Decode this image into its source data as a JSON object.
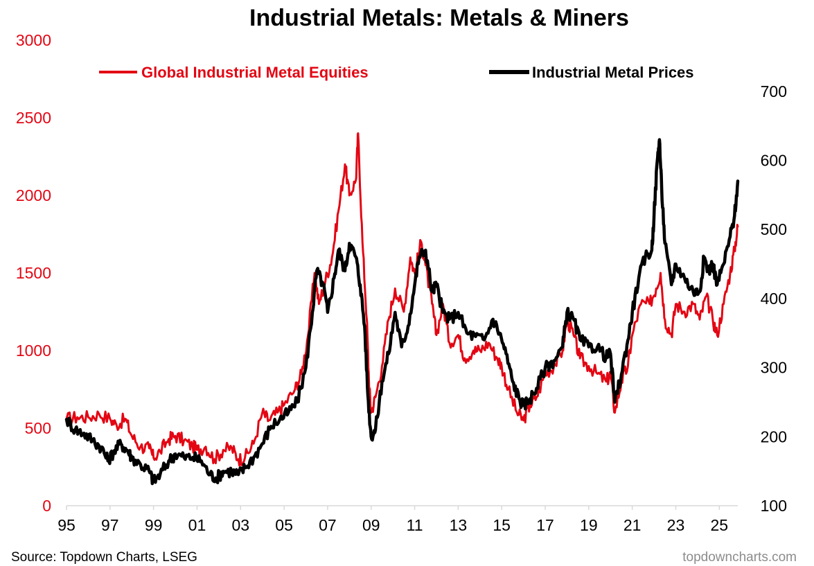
{
  "chart_data": {
    "type": "line",
    "title": "Industrial Metals: Metals & Miners",
    "x_axis": {
      "ticks": [
        "95",
        "97",
        "99",
        "01",
        "03",
        "05",
        "07",
        "09",
        "11",
        "13",
        "15",
        "17",
        "19",
        "21",
        "23",
        "25"
      ],
      "range": [
        1995.0,
        2025.85
      ]
    },
    "y_left": {
      "range": [
        0,
        3000
      ],
      "ticks": [
        0,
        500,
        1000,
        1500,
        2000,
        2500,
        3000
      ],
      "color": "#e30613"
    },
    "y_right": {
      "range": [
        100,
        750
      ],
      "ticks": [
        100,
        200,
        300,
        400,
        500,
        600,
        700
      ],
      "color": "#000000"
    },
    "grid": false,
    "legend_placement": "top",
    "series": [
      {
        "name": "Global Industrial Metal Equities",
        "axis": "left",
        "color": "#e30613",
        "points": [
          [
            1995.0,
            560
          ],
          [
            1995.5,
            570
          ],
          [
            1996.0,
            570
          ],
          [
            1996.5,
            590
          ],
          [
            1997.0,
            560
          ],
          [
            1997.3,
            520
          ],
          [
            1997.7,
            560
          ],
          [
            1998.0,
            450
          ],
          [
            1998.4,
            380
          ],
          [
            1998.8,
            370
          ],
          [
            1999.0,
            310
          ],
          [
            1999.3,
            350
          ],
          [
            1999.7,
            430
          ],
          [
            2000.0,
            450
          ],
          [
            2000.4,
            420
          ],
          [
            2000.8,
            380
          ],
          [
            2001.0,
            360
          ],
          [
            2001.4,
            380
          ],
          [
            2001.8,
            300
          ],
          [
            2002.2,
            360
          ],
          [
            2002.6,
            370
          ],
          [
            2002.9,
            300
          ],
          [
            2003.2,
            310
          ],
          [
            2003.6,
            400
          ],
          [
            2004.0,
            600
          ],
          [
            2004.3,
            550
          ],
          [
            2004.7,
            600
          ],
          [
            2005.0,
            650
          ],
          [
            2005.5,
            750
          ],
          [
            2005.8,
            850
          ],
          [
            2006.1,
            1100
          ],
          [
            2006.4,
            1500
          ],
          [
            2006.6,
            1300
          ],
          [
            2006.9,
            1450
          ],
          [
            2007.2,
            1600
          ],
          [
            2007.5,
            1900
          ],
          [
            2007.8,
            2200
          ],
          [
            2008.0,
            2000
          ],
          [
            2008.3,
            2100
          ],
          [
            2008.4,
            2400
          ],
          [
            2008.6,
            1700
          ],
          [
            2008.8,
            1200
          ],
          [
            2008.9,
            800
          ],
          [
            2009.0,
            600
          ],
          [
            2009.2,
            700
          ],
          [
            2009.5,
            900
          ],
          [
            2009.8,
            1200
          ],
          [
            2010.1,
            1400
          ],
          [
            2010.5,
            1250
          ],
          [
            2010.8,
            1600
          ],
          [
            2011.0,
            1500
          ],
          [
            2011.3,
            1700
          ],
          [
            2011.5,
            1550
          ],
          [
            2011.8,
            1300
          ],
          [
            2012.0,
            1100
          ],
          [
            2012.3,
            1300
          ],
          [
            2012.6,
            1050
          ],
          [
            2013.0,
            1100
          ],
          [
            2013.3,
            950
          ],
          [
            2013.7,
            1000
          ],
          [
            2014.0,
            1000
          ],
          [
            2014.4,
            1050
          ],
          [
            2014.8,
            950
          ],
          [
            2015.0,
            900
          ],
          [
            2015.3,
            750
          ],
          [
            2015.7,
            600
          ],
          [
            2016.0,
            550
          ],
          [
            2016.3,
            650
          ],
          [
            2016.6,
            700
          ],
          [
            2017.0,
            850
          ],
          [
            2017.4,
            900
          ],
          [
            2017.8,
            1000
          ],
          [
            2018.0,
            1200
          ],
          [
            2018.3,
            1100
          ],
          [
            2018.6,
            950
          ],
          [
            2019.0,
            900
          ],
          [
            2019.4,
            850
          ],
          [
            2019.8,
            800
          ],
          [
            2020.0,
            850
          ],
          [
            2020.2,
            600
          ],
          [
            2020.5,
            800
          ],
          [
            2020.8,
            900
          ],
          [
            2021.0,
            1100
          ],
          [
            2021.4,
            1300
          ],
          [
            2021.8,
            1300
          ],
          [
            2022.1,
            1400
          ],
          [
            2022.3,
            1500
          ],
          [
            2022.5,
            1200
          ],
          [
            2022.8,
            1100
          ],
          [
            2023.0,
            1300
          ],
          [
            2023.4,
            1250
          ],
          [
            2023.8,
            1300
          ],
          [
            2024.1,
            1200
          ],
          [
            2024.4,
            1350
          ],
          [
            2024.7,
            1200
          ],
          [
            2024.9,
            1100
          ],
          [
            2025.2,
            1300
          ],
          [
            2025.5,
            1500
          ],
          [
            2025.7,
            1650
          ],
          [
            2025.85,
            1800
          ]
        ]
      },
      {
        "name": "Industrial Metal Prices",
        "axis": "right",
        "color": "#000000",
        "points": [
          [
            1995.0,
            225
          ],
          [
            1995.4,
            210
          ],
          [
            1995.8,
            205
          ],
          [
            1996.2,
            195
          ],
          [
            1996.6,
            185
          ],
          [
            1996.9,
            165
          ],
          [
            1997.2,
            180
          ],
          [
            1997.5,
            190
          ],
          [
            1997.8,
            180
          ],
          [
            1998.0,
            170
          ],
          [
            1998.4,
            160
          ],
          [
            1998.8,
            150
          ],
          [
            1999.0,
            135
          ],
          [
            1999.3,
            145
          ],
          [
            1999.7,
            165
          ],
          [
            2000.0,
            175
          ],
          [
            2000.4,
            170
          ],
          [
            2000.8,
            170
          ],
          [
            2001.2,
            165
          ],
          [
            2001.6,
            145
          ],
          [
            2001.9,
            140
          ],
          [
            2002.2,
            150
          ],
          [
            2002.6,
            150
          ],
          [
            2002.9,
            145
          ],
          [
            2003.2,
            155
          ],
          [
            2003.6,
            170
          ],
          [
            2004.0,
            190
          ],
          [
            2004.4,
            215
          ],
          [
            2004.8,
            225
          ],
          [
            2005.2,
            235
          ],
          [
            2005.6,
            250
          ],
          [
            2006.0,
            300
          ],
          [
            2006.3,
            380
          ],
          [
            2006.5,
            440
          ],
          [
            2006.8,
            420
          ],
          [
            2007.0,
            380
          ],
          [
            2007.3,
            430
          ],
          [
            2007.5,
            470
          ],
          [
            2007.8,
            440
          ],
          [
            2008.0,
            480
          ],
          [
            2008.3,
            460
          ],
          [
            2008.5,
            420
          ],
          [
            2008.7,
            360
          ],
          [
            2008.85,
            260
          ],
          [
            2009.0,
            200
          ],
          [
            2009.2,
            210
          ],
          [
            2009.5,
            280
          ],
          [
            2009.8,
            320
          ],
          [
            2010.1,
            380
          ],
          [
            2010.4,
            330
          ],
          [
            2010.7,
            360
          ],
          [
            2011.0,
            420
          ],
          [
            2011.2,
            460
          ],
          [
            2011.5,
            470
          ],
          [
            2011.8,
            410
          ],
          [
            2012.0,
            420
          ],
          [
            2012.3,
            380
          ],
          [
            2012.6,
            370
          ],
          [
            2013.0,
            380
          ],
          [
            2013.4,
            350
          ],
          [
            2013.8,
            345
          ],
          [
            2014.2,
            340
          ],
          [
            2014.6,
            370
          ],
          [
            2014.9,
            350
          ],
          [
            2015.2,
            320
          ],
          [
            2015.5,
            280
          ],
          [
            2015.8,
            255
          ],
          [
            2016.0,
            245
          ],
          [
            2016.3,
            255
          ],
          [
            2016.6,
            270
          ],
          [
            2017.0,
            300
          ],
          [
            2017.4,
            310
          ],
          [
            2017.8,
            330
          ],
          [
            2018.0,
            380
          ],
          [
            2018.3,
            370
          ],
          [
            2018.6,
            340
          ],
          [
            2019.0,
            330
          ],
          [
            2019.4,
            330
          ],
          [
            2019.8,
            315
          ],
          [
            2020.0,
            320
          ],
          [
            2020.2,
            250
          ],
          [
            2020.5,
            290
          ],
          [
            2020.8,
            340
          ],
          [
            2021.0,
            380
          ],
          [
            2021.3,
            430
          ],
          [
            2021.6,
            460
          ],
          [
            2021.9,
            470
          ],
          [
            2022.0,
            520
          ],
          [
            2022.15,
            600
          ],
          [
            2022.25,
            630
          ],
          [
            2022.35,
            560
          ],
          [
            2022.5,
            480
          ],
          [
            2022.8,
            420
          ],
          [
            2023.0,
            450
          ],
          [
            2023.4,
            430
          ],
          [
            2023.8,
            410
          ],
          [
            2024.1,
            410
          ],
          [
            2024.3,
            460
          ],
          [
            2024.5,
            440
          ],
          [
            2024.7,
            450
          ],
          [
            2024.9,
            420
          ],
          [
            2025.2,
            450
          ],
          [
            2025.5,
            490
          ],
          [
            2025.7,
            520
          ],
          [
            2025.85,
            570
          ]
        ]
      }
    ]
  },
  "legend": {
    "equities": "Global Industrial Metal Equities",
    "prices": "Industrial Metal Prices"
  },
  "footer": {
    "source": "Source: Topdown Charts, LSEG",
    "brand": "topdowncharts.com"
  }
}
